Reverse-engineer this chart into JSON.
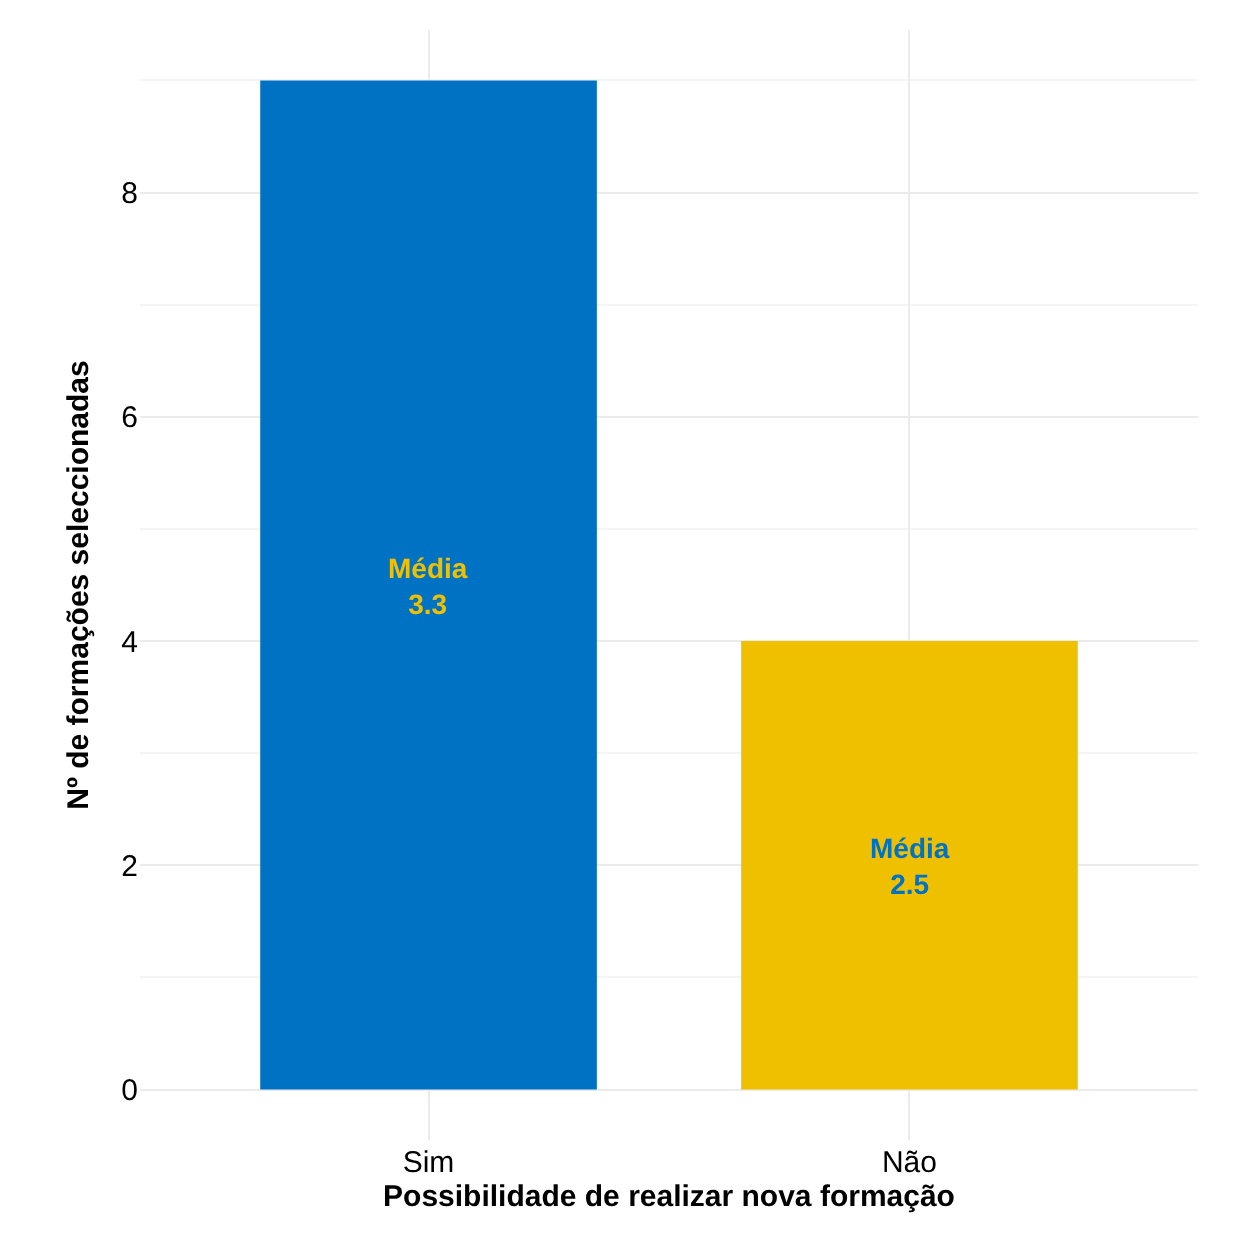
{
  "chart_data": {
    "type": "bar",
    "categories": [
      "Sim",
      "Não"
    ],
    "values": [
      9,
      4
    ],
    "colors": [
      "#0072c3",
      "#efc000"
    ],
    "xlabel": "Possibilidade de realizar nova formação",
    "ylabel": "Nº de formações seleccionadas",
    "ylim": [
      -0.45,
      9.45
    ],
    "yticks": [
      0,
      2,
      4,
      6,
      8
    ],
    "grid": true,
    "annotations": [
      "Média\n3.3",
      "Média\n2.5"
    ]
  }
}
